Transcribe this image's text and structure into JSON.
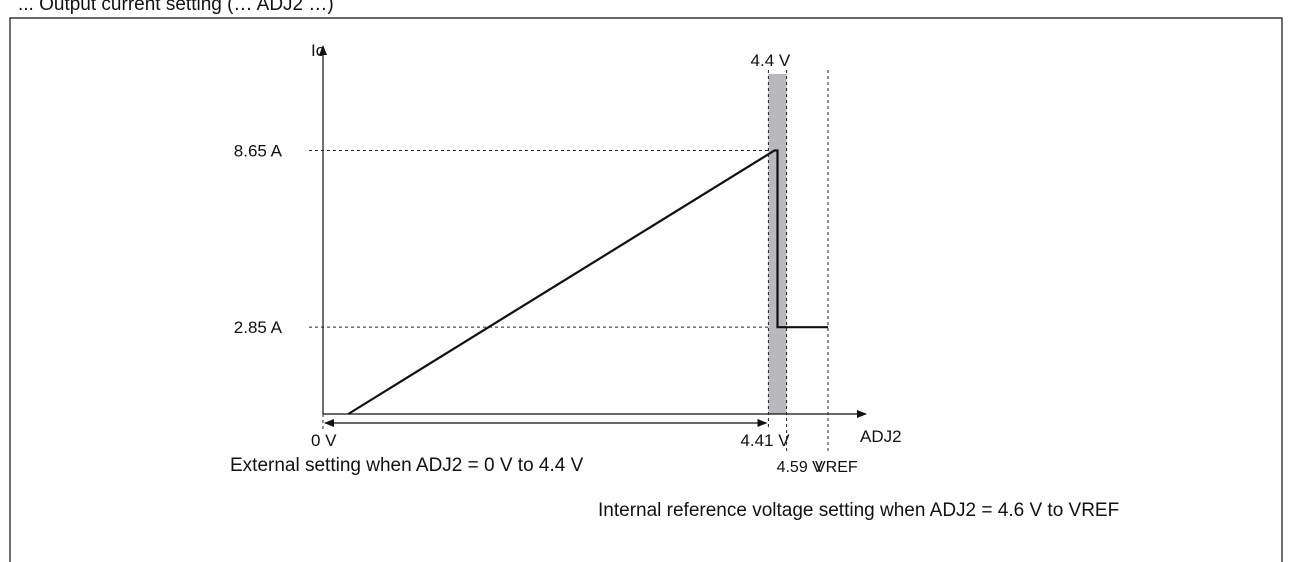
{
  "header_fragment": "... Output current setting (… ADJ2 …)",
  "colors": {
    "ink": "#111111",
    "band": "#b9b9bd",
    "guide": "#222222"
  },
  "chart_data": {
    "type": "line",
    "title": "",
    "xlabel": "ADJ2",
    "ylabel": "Io",
    "x_unit": "V",
    "y_unit": "A",
    "xlim": [
      0,
      5.0
    ],
    "ylim": [
      0,
      10.7
    ],
    "grid": false,
    "series": [
      {
        "x": [
          0.25,
          4.47,
          4.5,
          4.5,
          5.0
        ],
        "y": [
          0.0,
          8.65,
          8.65,
          2.85,
          2.85
        ]
      }
    ],
    "shaded_band": {
      "from": 4.41,
      "to": 4.59
    },
    "y_ticks": [
      {
        "value": 8.65,
        "label": "8.65 A"
      },
      {
        "value": 2.85,
        "label": "2.85 A"
      }
    ],
    "x_ticks": [
      {
        "value": 0,
        "label": "0 V",
        "row": 1
      },
      {
        "value": 4.41,
        "label": "4.41 V",
        "row": 1
      },
      {
        "value": 4.59,
        "label": "4.59 V",
        "row": 2
      },
      {
        "value": 5.0,
        "label": "VREF",
        "row": 2
      }
    ],
    "top_label": {
      "value": 4.4,
      "label": "4.4 V"
    },
    "annotations": {
      "external": "External setting when ADJ2 = 0 V to 4.4 V",
      "internal": "Internal reference voltage setting when ADJ2 = 4.6 V to VREF"
    }
  }
}
